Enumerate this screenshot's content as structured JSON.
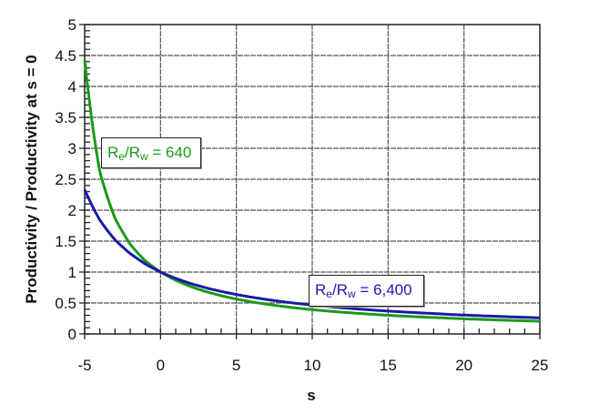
{
  "chart_data": {
    "type": "line",
    "title": "",
    "xlabel": "s",
    "ylabel": "Productivity / Productivity at s = 0",
    "xlim": [
      -5,
      25
    ],
    "ylim": [
      0,
      5
    ],
    "x_ticks": [
      -5,
      0,
      5,
      10,
      15,
      20,
      25
    ],
    "x_tick_labels": [
      "-5",
      "0",
      "5",
      "10",
      "15",
      "20",
      "25"
    ],
    "y_ticks": [
      0,
      0.5,
      1,
      1.5,
      2,
      2.5,
      3,
      3.5,
      4,
      4.5,
      5
    ],
    "y_tick_labels": [
      "0",
      "0.5",
      "1",
      "1.5",
      "2",
      "2.5",
      "3",
      "3.5",
      "4",
      "4.5",
      "5"
    ],
    "grid": true,
    "legend": "inline annotations",
    "x": [
      -5,
      -4,
      -3,
      -2,
      -1,
      0,
      1,
      2,
      3,
      4,
      5,
      6,
      7,
      8,
      9,
      10,
      12,
      15,
      20,
      25
    ],
    "series": [
      {
        "name": "Re/Rw = 640",
        "color": "#1a9a1a",
        "values": [
          4.43,
          2.62,
          1.87,
          1.45,
          1.18,
          1.0,
          0.866,
          0.764,
          0.683,
          0.618,
          0.564,
          0.518,
          0.48,
          0.447,
          0.418,
          0.392,
          0.35,
          0.301,
          0.244,
          0.205
        ]
      },
      {
        "name": "Re/Rw = 6,400",
        "color": "#1a1aa8",
        "values": [
          2.33,
          1.84,
          1.52,
          1.3,
          1.13,
          1.0,
          0.898,
          0.814,
          0.745,
          0.687,
          0.637,
          0.594,
          0.556,
          0.523,
          0.493,
          0.467,
          0.422,
          0.369,
          0.305,
          0.26
        ]
      }
    ],
    "annotations": [
      {
        "text_main": "R",
        "sub1": "e",
        "mid": "/R",
        "sub2": "w",
        "tail": " = 640",
        "color": "#1a9a1a"
      },
      {
        "text_main": "R",
        "sub1": "e",
        "mid": "/R",
        "sub2": "w",
        "tail": " = 6,400",
        "color": "#1a1aa8"
      }
    ]
  }
}
